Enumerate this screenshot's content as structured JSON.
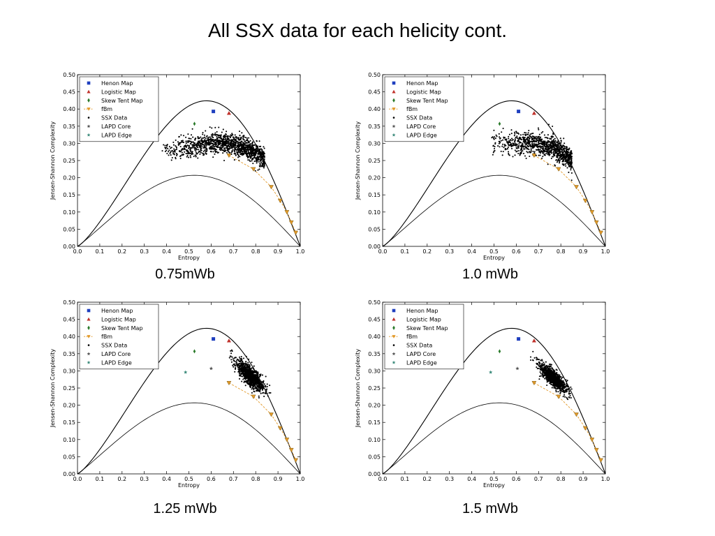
{
  "slide": {
    "title": "All SSX data for each helicity cont."
  },
  "legend_items": [
    {
      "label": "Henon Map",
      "marker": "square",
      "color": "#1f3fbf"
    },
    {
      "label": "Logistic Map",
      "marker": "triangle-up",
      "color": "#c0302a"
    },
    {
      "label": "Skew Tent Map",
      "marker": "diamond",
      "color": "#2a7a2a"
    },
    {
      "label": "fBm",
      "marker": "triangle-down",
      "color": "#e39a2a"
    },
    {
      "label": "SSX Data",
      "marker": "dot",
      "color": "#000000"
    },
    {
      "label": "LAPD Core",
      "marker": "star",
      "color": "#555555"
    },
    {
      "label": "LAPD Edge",
      "marker": "star",
      "color": "#3a8a7a"
    }
  ],
  "axes": {
    "xlabel": "Entropy",
    "ylabel": "Jensen-Shannon Complexity",
    "xlim": [
      0.0,
      1.0
    ],
    "ylim": [
      0.0,
      0.5
    ],
    "xticks": [
      "0.0",
      "0.1",
      "0.2",
      "0.3",
      "0.4",
      "0.5",
      "0.6",
      "0.7",
      "0.8",
      "0.9",
      "1.0"
    ],
    "yticks": [
      "0.00",
      "0.05",
      "0.10",
      "0.15",
      "0.20",
      "0.25",
      "0.30",
      "0.35",
      "0.40",
      "0.45",
      "0.50"
    ]
  },
  "chart_data": [
    {
      "type": "scatter",
      "caption": "0.75mWb",
      "henon_map": [
        0.61,
        0.393
      ],
      "skew_tent_map": [
        0.525,
        0.357
      ],
      "fbm": {
        "x": [
          0.68,
          0.79,
          0.87,
          0.91,
          0.94,
          0.96,
          0.98
        ],
        "y": [
          0.265,
          0.225,
          0.173,
          0.133,
          0.1,
          0.07,
          0.04
        ]
      },
      "ssx_cloud": {
        "x_range": [
          0.38,
          0.84
        ],
        "y_center": 0.3,
        "y_spread": 0.025
      },
      "lapd_core": null,
      "lapd_edge": null,
      "logistic_map": [
        0.68,
        0.388
      ]
    },
    {
      "type": "scatter",
      "caption": "1.0 mWb",
      "henon_map": [
        0.61,
        0.393
      ],
      "logistic_map": [
        0.68,
        0.388
      ],
      "skew_tent_map": [
        0.525,
        0.357
      ],
      "fbm": {
        "x": [
          0.68,
          0.79,
          0.87,
          0.91,
          0.94,
          0.96,
          0.98
        ],
        "y": [
          0.265,
          0.225,
          0.173,
          0.133,
          0.1,
          0.07,
          0.04
        ]
      },
      "ssx_cloud": {
        "x_range": [
          0.48,
          0.85
        ],
        "y_center": 0.295,
        "y_spread": 0.03
      },
      "lapd_core": null,
      "lapd_edge": null
    },
    {
      "type": "scatter",
      "caption": "1.25 mWb",
      "henon_map": [
        0.61,
        0.393
      ],
      "logistic_map": [
        0.68,
        0.388
      ],
      "skew_tent_map": [
        0.525,
        0.357
      ],
      "fbm": {
        "x": [
          0.68,
          0.79,
          0.87,
          0.91,
          0.94,
          0.96,
          0.98
        ],
        "y": [
          0.265,
          0.225,
          0.173,
          0.133,
          0.1,
          0.07,
          0.04
        ]
      },
      "ssx_cloud": {
        "x_range": [
          0.65,
          0.88
        ],
        "y_center": 0.28,
        "y_spread": 0.025
      },
      "lapd_core": [
        0.6,
        0.307
      ],
      "lapd_edge": [
        0.485,
        0.296
      ]
    },
    {
      "type": "scatter",
      "caption": "1.5 mWb",
      "henon_map": [
        0.61,
        0.393
      ],
      "logistic_map": [
        0.68,
        0.388
      ],
      "skew_tent_map": [
        0.525,
        0.357
      ],
      "fbm": {
        "x": [
          0.68,
          0.79,
          0.87,
          0.91,
          0.94,
          0.96,
          0.98
        ],
        "y": [
          0.265,
          0.225,
          0.173,
          0.133,
          0.1,
          0.07,
          0.04
        ]
      },
      "ssx_cloud": {
        "x_range": [
          0.67,
          0.87
        ],
        "y_center": 0.275,
        "y_spread": 0.022
      },
      "lapd_core": [
        0.605,
        0.307
      ],
      "lapd_edge": [
        0.485,
        0.296
      ]
    }
  ]
}
